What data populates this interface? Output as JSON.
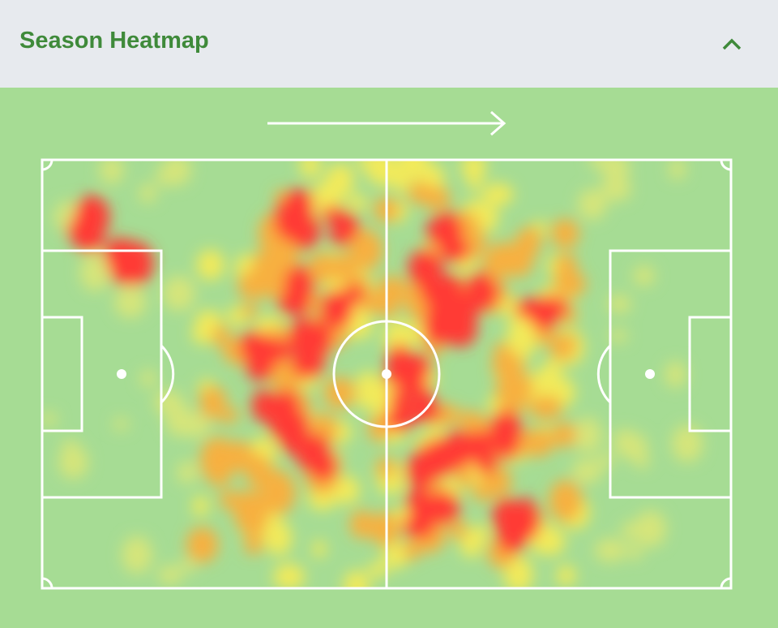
{
  "header": {
    "title": "Season Heatmap"
  }
}
